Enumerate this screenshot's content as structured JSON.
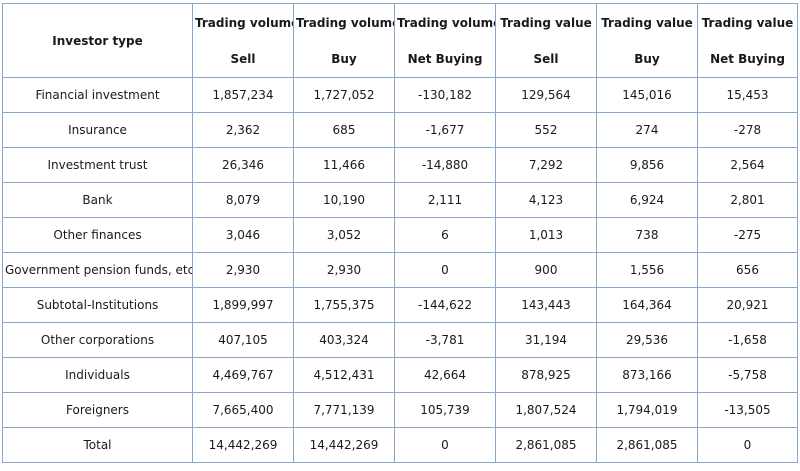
{
  "table": {
    "header_corner": "Investor type",
    "columns": [
      {
        "top": "Trading volume",
        "bottom": "Sell"
      },
      {
        "top": "Trading volume",
        "bottom": "Buy"
      },
      {
        "top": "Trading volume",
        "bottom": "Net Buying"
      },
      {
        "top": "Trading value",
        "bottom": "Sell"
      },
      {
        "top": "Trading value",
        "bottom": "Buy"
      },
      {
        "top": "Trading value",
        "bottom": "Net Buying"
      }
    ],
    "rows": [
      {
        "label": "Financial investment",
        "cells": [
          "1,857,234",
          "1,727,052",
          "-130,182",
          "129,564",
          "145,016",
          "15,453"
        ]
      },
      {
        "label": "Insurance",
        "cells": [
          "2,362",
          "685",
          "-1,677",
          "552",
          "274",
          "-278"
        ]
      },
      {
        "label": "Investment trust",
        "cells": [
          "26,346",
          "11,466",
          "-14,880",
          "7,292",
          "9,856",
          "2,564"
        ]
      },
      {
        "label": "Bank",
        "cells": [
          "8,079",
          "10,190",
          "2,111",
          "4,123",
          "6,924",
          "2,801"
        ]
      },
      {
        "label": "Other finances",
        "cells": [
          "3,046",
          "3,052",
          "6",
          "1,013",
          "738",
          "-275"
        ]
      },
      {
        "label": "Government pension funds, etc.",
        "cells": [
          "2,930",
          "2,930",
          "0",
          "900",
          "1,556",
          "656"
        ]
      },
      {
        "label": "Subtotal-Institutions",
        "cells": [
          "1,899,997",
          "1,755,375",
          "-144,622",
          "143,443",
          "164,364",
          "20,921"
        ]
      },
      {
        "label": "Other corporations",
        "cells": [
          "407,105",
          "403,324",
          "-3,781",
          "31,194",
          "29,536",
          "-1,658"
        ]
      },
      {
        "label": "Individuals",
        "cells": [
          "4,469,767",
          "4,512,431",
          "42,664",
          "878,925",
          "873,166",
          "-5,758"
        ]
      },
      {
        "label": "Foreigners",
        "cells": [
          "7,665,400",
          "7,771,139",
          "105,739",
          "1,807,524",
          "1,794,019",
          "-13,505"
        ]
      },
      {
        "label": "Total",
        "cells": [
          "14,442,269",
          "14,442,269",
          "0",
          "2,861,085",
          "2,861,085",
          "0"
        ]
      }
    ]
  }
}
